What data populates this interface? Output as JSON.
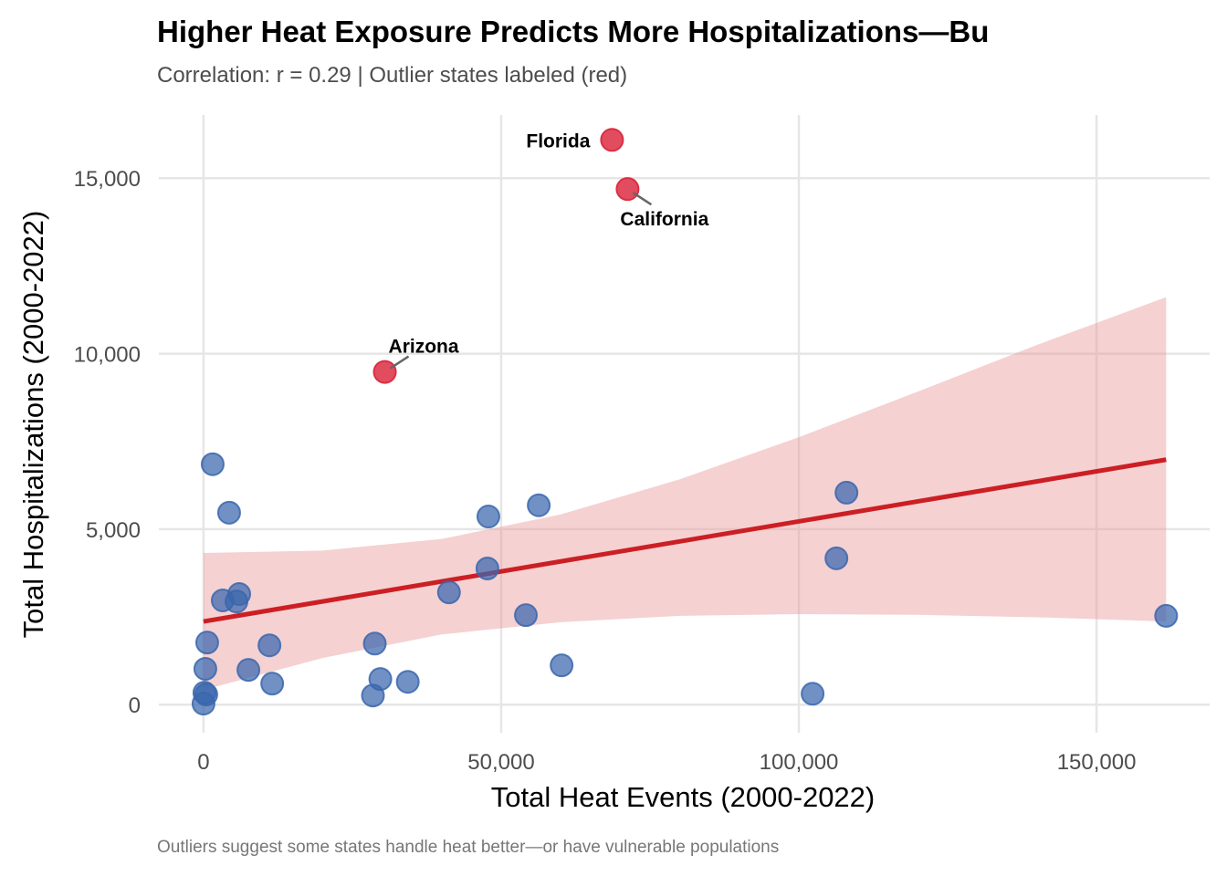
{
  "chart_data": {
    "type": "scatter",
    "title": "Higher Heat Exposure Predicts More Hospitalizations—Bu",
    "subtitle": "Correlation: r = 0.29 | Outlier states labeled (red)",
    "caption": "Outliers suggest some states handle heat better—or have vulnerable populations",
    "xlabel": "Total Heat Events (2000-2022)",
    "ylabel": "Total Hospitalizations (2000-2022)",
    "xlim": [
      -7500,
      169000
    ],
    "ylim": [
      -800,
      16800
    ],
    "xticks": [
      0,
      50000,
      100000,
      150000
    ],
    "xtick_labels": [
      "0",
      "50,000",
      "100,000",
      "150,000"
    ],
    "yticks": [
      0,
      5000,
      10000,
      15000
    ],
    "ytick_labels": [
      "0",
      "5,000",
      "10,000",
      "15,000"
    ],
    "grid": true,
    "colors": {
      "points": "#3a66ad",
      "outliers": "#dc2e42",
      "trend": "#cc1f24",
      "band": "#e89a9c",
      "grid": "#e6e6e6"
    },
    "series": [
      {
        "name": "States",
        "points": [
          {
            "x": 1540,
            "y": 6850
          },
          {
            "x": 4300,
            "y": 5470
          },
          {
            "x": 3230,
            "y": 2970
          },
          {
            "x": 6000,
            "y": 3150
          },
          {
            "x": 5540,
            "y": 2940
          },
          {
            "x": 620,
            "y": 1770
          },
          {
            "x": 310,
            "y": 1020
          },
          {
            "x": 150,
            "y": 340
          },
          {
            "x": 460,
            "y": 290
          },
          {
            "x": 0,
            "y": 30
          },
          {
            "x": 7540,
            "y": 990
          },
          {
            "x": 11080,
            "y": 1690
          },
          {
            "x": 11540,
            "y": 600
          },
          {
            "x": 28460,
            "y": 260
          },
          {
            "x": 28770,
            "y": 1740
          },
          {
            "x": 29700,
            "y": 730
          },
          {
            "x": 34310,
            "y": 650
          },
          {
            "x": 41230,
            "y": 3200
          },
          {
            "x": 47850,
            "y": 5360
          },
          {
            "x": 47690,
            "y": 3880
          },
          {
            "x": 54150,
            "y": 2550
          },
          {
            "x": 56310,
            "y": 5680
          },
          {
            "x": 60150,
            "y": 1120
          },
          {
            "x": 102310,
            "y": 310
          },
          {
            "x": 106310,
            "y": 4170
          },
          {
            "x": 108000,
            "y": 6040
          },
          {
            "x": 161690,
            "y": 2530
          }
        ]
      },
      {
        "name": "Outliers",
        "points": [
          {
            "x": 68620,
            "y": 16090,
            "label": "Florida",
            "label_side": "left"
          },
          {
            "x": 71230,
            "y": 14690,
            "label": "California",
            "label_side": "below-right"
          },
          {
            "x": 30460,
            "y": 9480,
            "label": "Arizona",
            "label_side": "above-right"
          }
        ]
      }
    ],
    "trend_line": {
      "x": [
        0,
        161690
      ],
      "y": [
        2370,
        6980
      ]
    },
    "confidence_band": {
      "x": [
        0,
        20000,
        40000,
        60000,
        80000,
        100000,
        120000,
        140000,
        161690
      ],
      "upper": [
        4320,
        4390,
        4720,
        5420,
        6420,
        7620,
        8920,
        10250,
        11610
      ],
      "lower": [
        420,
        1330,
        2000,
        2350,
        2530,
        2580,
        2560,
        2490,
        2370
      ]
    }
  }
}
